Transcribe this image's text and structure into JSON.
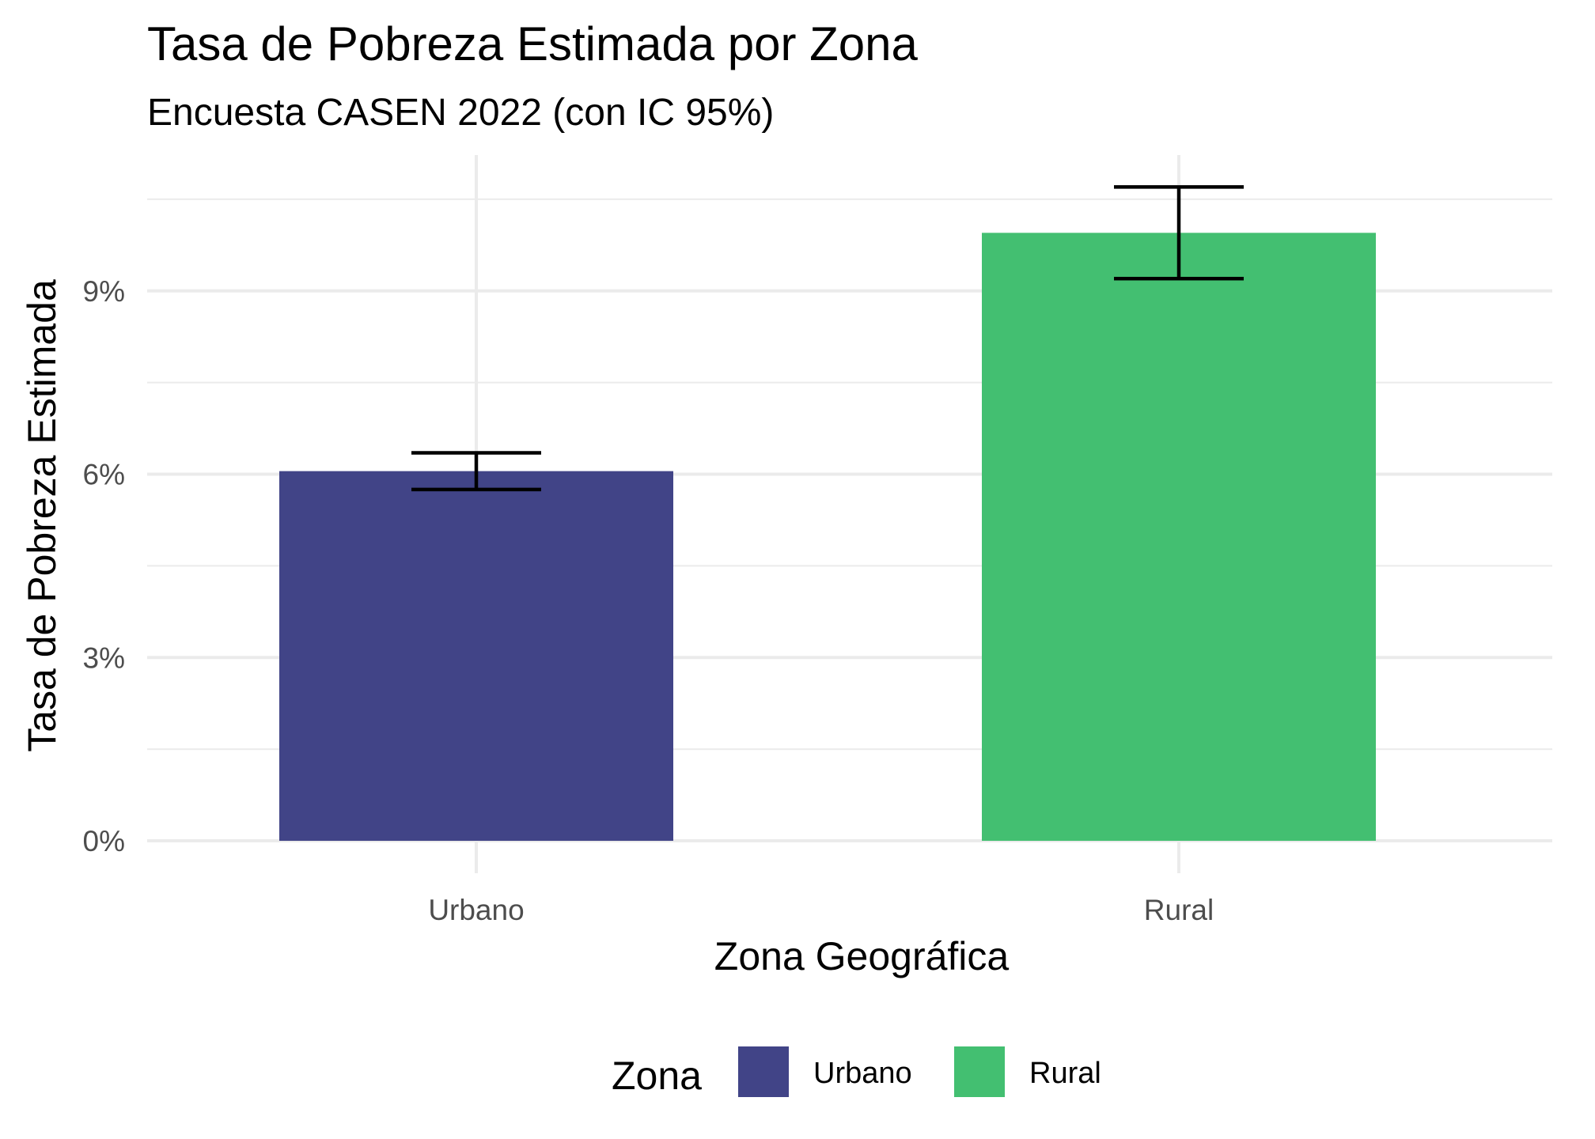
{
  "chart_data": {
    "type": "bar",
    "title": "Tasa de Pobreza Estimada por Zona",
    "subtitle": "Encuesta CASEN 2022 (con IC 95%)",
    "xlabel": "Zona Geográfica",
    "ylabel": "Tasa de Pobreza Estimada",
    "categories": [
      "Urbano",
      "Rural"
    ],
    "values": [
      6.05,
      9.95
    ],
    "ci_lower": [
      5.75,
      9.2
    ],
    "ci_upper": [
      6.35,
      10.7
    ],
    "colors": [
      "#414487",
      "#43BF71"
    ],
    "ylim": [
      0,
      10.98
    ],
    "yticks": [
      0,
      3,
      6,
      9
    ],
    "ytick_labels": [
      "0%",
      "3%",
      "6%",
      "9%"
    ],
    "grid": true,
    "legend": {
      "title": "Zona",
      "position": "bottom",
      "entries": [
        "Urbano",
        "Rural"
      ]
    }
  }
}
